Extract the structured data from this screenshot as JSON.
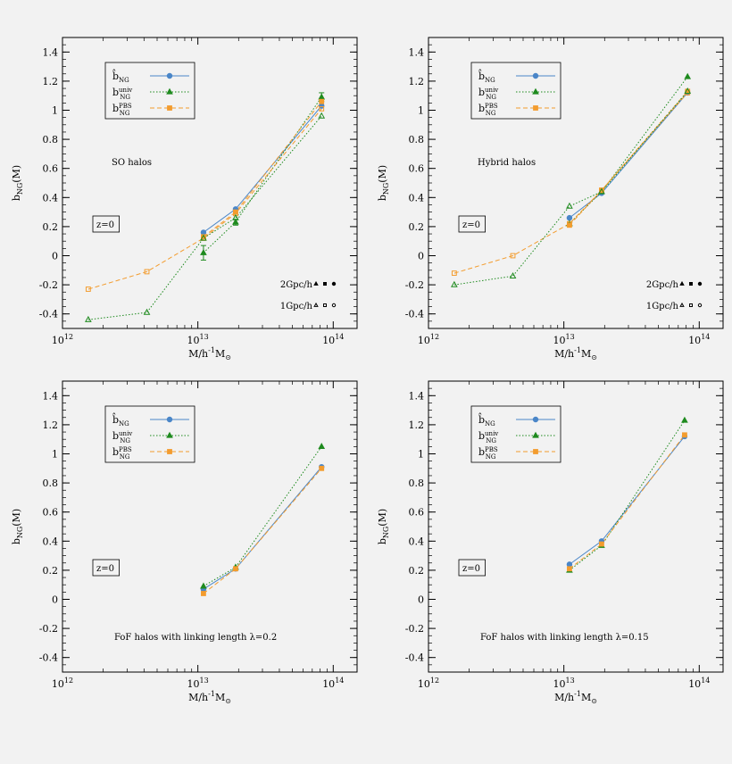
{
  "chart_data": [
    {
      "type": "line",
      "panel": "top-left",
      "xscale": "log",
      "xlim": [
        1000000000000.0,
        150000000000000.0
      ],
      "ylim": [
        -0.5,
        1.5
      ],
      "xlabel": {
        "main": "M/h",
        "sup": "-1",
        "mid": "M",
        "sub": "⊙"
      },
      "ylabel": {
        "main": "b",
        "sub": "NG",
        "tail": "(M)"
      },
      "x_ticks": [
        {
          "value": 1000000000000.0,
          "base": "10",
          "exp": "12"
        },
        {
          "value": 10000000000000.0,
          "base": "10",
          "exp": "13"
        },
        {
          "value": 100000000000000.0,
          "base": "10",
          "exp": "14"
        }
      ],
      "y_ticks": [
        {
          "value": -0.4,
          "label": "-0.4"
        },
        {
          "value": -0.2,
          "label": "-0.2"
        },
        {
          "value": 0,
          "label": "0"
        },
        {
          "value": 0.2,
          "label": "0.2"
        },
        {
          "value": 0.4,
          "label": "0.4"
        },
        {
          "value": 0.6,
          "label": "0.6"
        },
        {
          "value": 0.8,
          "label": "0.8"
        },
        {
          "value": 1,
          "label": "1"
        },
        {
          "value": 1.2,
          "label": "1.2"
        },
        {
          "value": 1.4,
          "label": "1.4"
        }
      ],
      "legend": {
        "placement": "top-left",
        "entries": [
          {
            "main": "b̂",
            "sub": "NG",
            "sup": ""
          },
          {
            "main": "b",
            "sub": "NG",
            "sup": "univ"
          },
          {
            "main": "b",
            "sub": "NG",
            "sup": "PBS"
          }
        ]
      },
      "annotations": [
        "SO halos",
        "z=0"
      ],
      "resolution_legend": [
        "2Gpc/h",
        "1Gpc/h"
      ],
      "series": [
        {
          "key": "bhat_2gpc",
          "color": "#4a86c8",
          "style": "solid",
          "marker": "circle",
          "filled": true,
          "x": [
            11000000000000.0,
            19000000000000.0,
            82000000000000.0
          ],
          "y": [
            0.16,
            0.32,
            1.03
          ]
        },
        {
          "key": "univ_2gpc",
          "color": "#1e8a1e",
          "style": "dotted",
          "marker": "triangle",
          "filled": true,
          "x": [
            11000000000000.0,
            19000000000000.0,
            82000000000000.0
          ],
          "y": [
            0.02,
            0.23,
            1.09
          ],
          "yerr": [
            0.05,
            0.02,
            0.03
          ]
        },
        {
          "key": "pbs_2gpc",
          "color": "#f39c2e",
          "style": "dashed",
          "marker": "square",
          "filled": true,
          "x": [
            11000000000000.0,
            19000000000000.0,
            82000000000000.0
          ],
          "y": [
            0.13,
            0.3,
            1.06
          ]
        },
        {
          "key": "pbs_1gpc",
          "color": "#f39c2e",
          "style": "dashed",
          "marker": "square",
          "filled": false,
          "x": [
            1550000000000.0,
            4200000000000.0,
            11000000000000.0,
            19000000000000.0,
            82000000000000.0
          ],
          "y": [
            -0.23,
            -0.11,
            0.12,
            0.29,
            1.01
          ]
        },
        {
          "key": "univ_1gpc",
          "color": "#1e8a1e",
          "style": "dotted",
          "marker": "triangle",
          "filled": false,
          "x": [
            1550000000000.0,
            4200000000000.0,
            11000000000000.0,
            19000000000000.0,
            82000000000000.0
          ],
          "y": [
            -0.44,
            -0.39,
            0.12,
            0.26,
            0.96
          ]
        }
      ]
    },
    {
      "type": "line",
      "panel": "top-right",
      "xscale": "log",
      "xlim": [
        1000000000000.0,
        150000000000000.0
      ],
      "ylim": [
        -0.5,
        1.5
      ],
      "xlabel": {
        "main": "M/h",
        "sup": "-1",
        "mid": "M",
        "sub": "⊙"
      },
      "ylabel": {
        "main": "b",
        "sub": "NG",
        "tail": "(M)"
      },
      "x_ticks": [
        {
          "value": 1000000000000.0,
          "base": "10",
          "exp": "12"
        },
        {
          "value": 10000000000000.0,
          "base": "10",
          "exp": "13"
        },
        {
          "value": 100000000000000.0,
          "base": "10",
          "exp": "14"
        }
      ],
      "y_ticks": [
        {
          "value": -0.4,
          "label": "-0.4"
        },
        {
          "value": -0.2,
          "label": "-0.2"
        },
        {
          "value": 0,
          "label": "0"
        },
        {
          "value": 0.2,
          "label": "0.2"
        },
        {
          "value": 0.4,
          "label": "0.4"
        },
        {
          "value": 0.6,
          "label": "0.6"
        },
        {
          "value": 0.8,
          "label": "0.8"
        },
        {
          "value": 1,
          "label": "1"
        },
        {
          "value": 1.2,
          "label": "1.2"
        },
        {
          "value": 1.4,
          "label": "1.4"
        }
      ],
      "legend": {
        "placement": "top-left",
        "entries": [
          {
            "main": "b̂",
            "sub": "NG",
            "sup": ""
          },
          {
            "main": "b",
            "sub": "NG",
            "sup": "univ"
          },
          {
            "main": "b",
            "sub": "NG",
            "sup": "PBS"
          }
        ]
      },
      "annotations": [
        "Hybrid halos",
        "z=0"
      ],
      "resolution_legend": [
        "2Gpc/h",
        "1Gpc/h"
      ],
      "series": [
        {
          "key": "bhat_2gpc",
          "color": "#4a86c8",
          "style": "solid",
          "marker": "circle",
          "filled": true,
          "x": [
            11000000000000.0,
            19000000000000.0,
            82000000000000.0
          ],
          "y": [
            0.26,
            0.43,
            1.12
          ]
        },
        {
          "key": "univ_2gpc",
          "color": "#1e8a1e",
          "style": "dotted",
          "marker": "triangle",
          "filled": true,
          "x": [
            11000000000000.0,
            19000000000000.0,
            82000000000000.0
          ],
          "y": [
            0.22,
            0.44,
            1.23
          ]
        },
        {
          "key": "pbs_2gpc",
          "color": "#f39c2e",
          "style": "dashed",
          "marker": "square",
          "filled": true,
          "x": [
            11000000000000.0,
            19000000000000.0,
            82000000000000.0
          ],
          "y": [
            0.21,
            0.45,
            1.13
          ]
        },
        {
          "key": "pbs_1gpc",
          "color": "#f39c2e",
          "style": "dashed",
          "marker": "square",
          "filled": false,
          "x": [
            1550000000000.0,
            4200000000000.0,
            11000000000000.0,
            19000000000000.0,
            82000000000000.0
          ],
          "y": [
            -0.12,
            0.0,
            0.22,
            0.45,
            1.12
          ]
        },
        {
          "key": "univ_1gpc",
          "color": "#1e8a1e",
          "style": "dotted",
          "marker": "triangle",
          "filled": false,
          "x": [
            1550000000000.0,
            4200000000000.0,
            11000000000000.0,
            19000000000000.0,
            82000000000000.0
          ],
          "y": [
            -0.2,
            -0.14,
            0.34,
            0.44,
            1.13
          ]
        }
      ]
    },
    {
      "type": "line",
      "panel": "bottom-left",
      "xscale": "log",
      "xlim": [
        1000000000000.0,
        150000000000000.0
      ],
      "ylim": [
        -0.5,
        1.5
      ],
      "xlabel": {
        "main": "M/h",
        "sup": "-1",
        "mid": "M",
        "sub": "⊙"
      },
      "ylabel": {
        "main": "b",
        "sub": "NG",
        "tail": "(M)"
      },
      "x_ticks": [
        {
          "value": 1000000000000.0,
          "base": "10",
          "exp": "12"
        },
        {
          "value": 10000000000000.0,
          "base": "10",
          "exp": "13"
        },
        {
          "value": 100000000000000.0,
          "base": "10",
          "exp": "14"
        }
      ],
      "y_ticks": [
        {
          "value": -0.4,
          "label": "-0.4"
        },
        {
          "value": -0.2,
          "label": "-0.2"
        },
        {
          "value": 0,
          "label": "0"
        },
        {
          "value": 0.2,
          "label": "0.2"
        },
        {
          "value": 0.4,
          "label": "0.4"
        },
        {
          "value": 0.6,
          "label": "0.6"
        },
        {
          "value": 0.8,
          "label": "0.8"
        },
        {
          "value": 1,
          "label": "1"
        },
        {
          "value": 1.2,
          "label": "1.2"
        },
        {
          "value": 1.4,
          "label": "1.4"
        }
      ],
      "legend": {
        "placement": "top-left",
        "entries": [
          {
            "main": "b̂",
            "sub": "NG",
            "sup": ""
          },
          {
            "main": "b",
            "sub": "NG",
            "sup": "univ"
          },
          {
            "main": "b",
            "sub": "NG",
            "sup": "PBS"
          }
        ]
      },
      "annotations": [
        "FoF halos with linking length λ=0.2",
        "z=0"
      ],
      "series": [
        {
          "key": "bhat_2gpc",
          "color": "#4a86c8",
          "style": "solid",
          "marker": "circle",
          "filled": true,
          "x": [
            11000000000000.0,
            19000000000000.0,
            82000000000000.0
          ],
          "y": [
            0.07,
            0.21,
            0.91
          ]
        },
        {
          "key": "univ_2gpc",
          "color": "#1e8a1e",
          "style": "dotted",
          "marker": "triangle",
          "filled": true,
          "x": [
            11000000000000.0,
            19000000000000.0,
            82000000000000.0
          ],
          "y": [
            0.09,
            0.22,
            1.05
          ]
        },
        {
          "key": "pbs_2gpc",
          "color": "#f39c2e",
          "style": "dashed",
          "marker": "square",
          "filled": true,
          "x": [
            11000000000000.0,
            19000000000000.0,
            82000000000000.0
          ],
          "y": [
            0.04,
            0.21,
            0.9
          ]
        }
      ]
    },
    {
      "type": "line",
      "panel": "bottom-right",
      "xscale": "log",
      "xlim": [
        1000000000000.0,
        150000000000000.0
      ],
      "ylim": [
        -0.5,
        1.5
      ],
      "xlabel": {
        "main": "M/h",
        "sup": "-1",
        "mid": "M",
        "sub": "⊙"
      },
      "ylabel": {
        "main": "b",
        "sub": "NG",
        "tail": "(M)"
      },
      "x_ticks": [
        {
          "value": 1000000000000.0,
          "base": "10",
          "exp": "12"
        },
        {
          "value": 10000000000000.0,
          "base": "10",
          "exp": "13"
        },
        {
          "value": 100000000000000.0,
          "base": "10",
          "exp": "14"
        }
      ],
      "y_ticks": [
        {
          "value": -0.4,
          "label": "-0.4"
        },
        {
          "value": -0.2,
          "label": "-0.2"
        },
        {
          "value": 0,
          "label": "0"
        },
        {
          "value": 0.2,
          "label": "0.2"
        },
        {
          "value": 0.4,
          "label": "0.4"
        },
        {
          "value": 0.6,
          "label": "0.6"
        },
        {
          "value": 0.8,
          "label": "0.8"
        },
        {
          "value": 1,
          "label": "1"
        },
        {
          "value": 1.2,
          "label": "1.2"
        },
        {
          "value": 1.4,
          "label": "1.4"
        }
      ],
      "legend": {
        "placement": "top-left",
        "entries": [
          {
            "main": "b̂",
            "sub": "NG",
            "sup": ""
          },
          {
            "main": "b",
            "sub": "NG",
            "sup": "univ"
          },
          {
            "main": "b",
            "sub": "NG",
            "sup": "PBS"
          }
        ]
      },
      "annotations": [
        "FoF halos with linking length λ=0.15",
        "z=0"
      ],
      "series": [
        {
          "key": "bhat_2gpc",
          "color": "#4a86c8",
          "style": "solid",
          "marker": "circle",
          "filled": true,
          "x": [
            11000000000000.0,
            19000000000000.0,
            78000000000000.0
          ],
          "y": [
            0.24,
            0.4,
            1.12
          ]
        },
        {
          "key": "univ_2gpc",
          "color": "#1e8a1e",
          "style": "dotted",
          "marker": "triangle",
          "filled": true,
          "x": [
            11000000000000.0,
            19000000000000.0,
            78000000000000.0
          ],
          "y": [
            0.2,
            0.37,
            1.23
          ]
        },
        {
          "key": "pbs_2gpc",
          "color": "#f39c2e",
          "style": "dashed",
          "marker": "square",
          "filled": true,
          "x": [
            11000000000000.0,
            19000000000000.0,
            78000000000000.0
          ],
          "y": [
            0.21,
            0.38,
            1.13
          ]
        }
      ]
    }
  ]
}
